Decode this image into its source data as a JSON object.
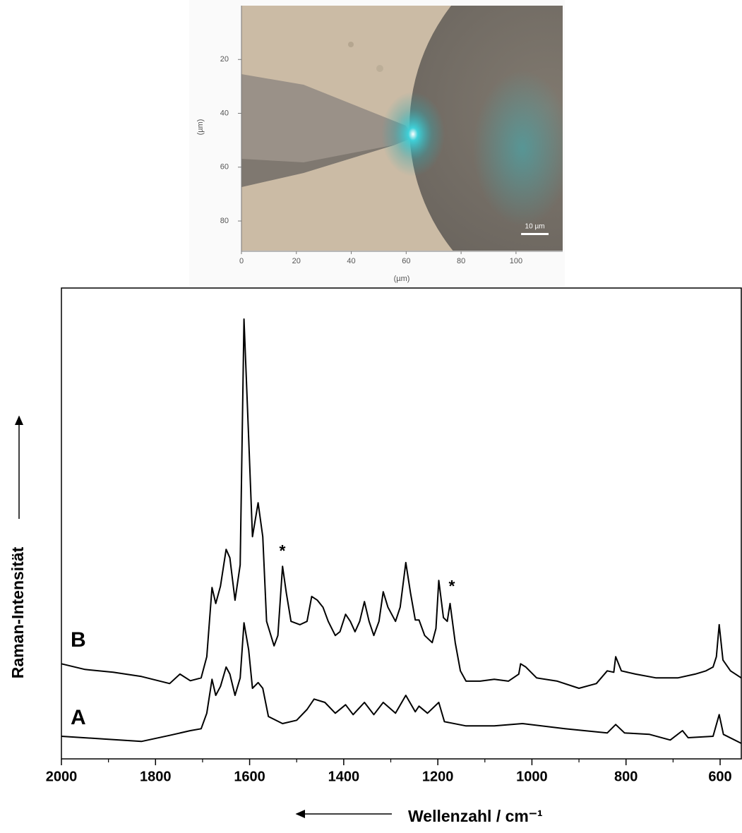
{
  "chart_data": [
    {
      "type": "image",
      "xlabel": "(µm)",
      "ylabel": "(µm)",
      "xlim": [
        0,
        117
      ],
      "ylim": [
        91,
        0
      ],
      "xticks": [
        0,
        20,
        40,
        60,
        80,
        100
      ],
      "yticks": [
        20,
        40,
        60,
        80
      ],
      "scale_bar": {
        "value": 10,
        "label": "10 µm"
      }
    },
    {
      "type": "line",
      "xlabel": "Wellenzahl / cm⁻¹",
      "ylabel": "Raman-Intensität",
      "xlim": [
        2000,
        555
      ],
      "ylim": [
        0,
        100
      ],
      "xticks": [
        2000,
        1800,
        1600,
        1400,
        1200,
        1000,
        800,
        600
      ],
      "annotations": [
        "*",
        "*"
      ],
      "series": [
        {
          "name": "B",
          "color": "#000000",
          "x": [
            2000,
            1950,
            1890,
            1830,
            1770,
            1748,
            1726,
            1703,
            1691,
            1680,
            1672,
            1662,
            1650,
            1642,
            1631,
            1620,
            1612,
            1602,
            1594,
            1582,
            1572,
            1564,
            1548,
            1540,
            1530,
            1522,
            1512,
            1493,
            1478,
            1468,
            1456,
            1444,
            1433,
            1418,
            1408,
            1396,
            1386,
            1376,
            1366,
            1356,
            1346,
            1336,
            1325,
            1316,
            1306,
            1290,
            1280,
            1268,
            1258,
            1248,
            1240,
            1228,
            1212,
            1204,
            1198,
            1188,
            1180,
            1174,
            1163,
            1152,
            1140,
            1110,
            1080,
            1050,
            1028,
            1024,
            1013,
            990,
            946,
            900,
            863,
            840,
            826,
            822,
            810,
            780,
            736,
            690,
            653,
            630,
            615,
            608,
            602,
            594,
            578,
            555
          ],
          "values": [
            20.2,
            19.0,
            18.4,
            17.5,
            16.0,
            18.0,
            16.6,
            17.2,
            21.7,
            36.4,
            33.0,
            36.7,
            44.5,
            42.7,
            33.7,
            41.2,
            93.4,
            68.2,
            47.2,
            54.4,
            47.2,
            29.2,
            24.0,
            26.2,
            40.9,
            35.2,
            29.2,
            28.5,
            29.2,
            34.5,
            33.7,
            32.2,
            29.2,
            26.2,
            27.0,
            30.7,
            29.2,
            27.0,
            29.2,
            33.4,
            29.2,
            26.2,
            29.2,
            35.5,
            32.2,
            29.2,
            32.2,
            41.7,
            35.2,
            29.5,
            29.5,
            26.2,
            24.7,
            27.7,
            37.9,
            30.0,
            29.2,
            33.0,
            24.7,
            18.7,
            16.5,
            16.5,
            16.9,
            16.5,
            18.0,
            20.2,
            19.5,
            17.2,
            16.5,
            15.0,
            16.0,
            18.7,
            18.4,
            21.7,
            18.7,
            18.0,
            17.2,
            17.2,
            18.0,
            18.7,
            19.5,
            21.7,
            28.5,
            21.0,
            18.7,
            17.2
          ]
        },
        {
          "name": "A",
          "color": "#000000",
          "x": [
            2000,
            1906,
            1830,
            1770,
            1726,
            1703,
            1691,
            1680,
            1672,
            1662,
            1650,
            1642,
            1631,
            1620,
            1612,
            1602,
            1594,
            1582,
            1572,
            1560,
            1530,
            1500,
            1478,
            1463,
            1440,
            1418,
            1396,
            1380,
            1356,
            1336,
            1316,
            1290,
            1268,
            1248,
            1240,
            1222,
            1198,
            1186,
            1140,
            1080,
            1020,
            930,
            840,
            822,
            803,
            750,
            706,
            680,
            668,
            615,
            602,
            593,
            555
          ],
          "values": [
            4.8,
            4.2,
            3.7,
            5.0,
            6.0,
            6.4,
            9.7,
            16.9,
            13.5,
            15.4,
            19.5,
            18.0,
            13.5,
            17.2,
            28.9,
            23.2,
            15.0,
            16.2,
            15.0,
            9.0,
            7.5,
            8.2,
            10.5,
            12.7,
            12.0,
            9.7,
            11.5,
            9.4,
            12.0,
            9.4,
            12.0,
            9.7,
            13.5,
            10.0,
            11.2,
            9.7,
            12.0,
            7.9,
            7.0,
            7.0,
            7.5,
            6.4,
            5.5,
            7.3,
            5.5,
            5.2,
            4.0,
            6.0,
            4.5,
            4.8,
            9.4,
            5.2,
            3.3
          ]
        }
      ]
    }
  ]
}
